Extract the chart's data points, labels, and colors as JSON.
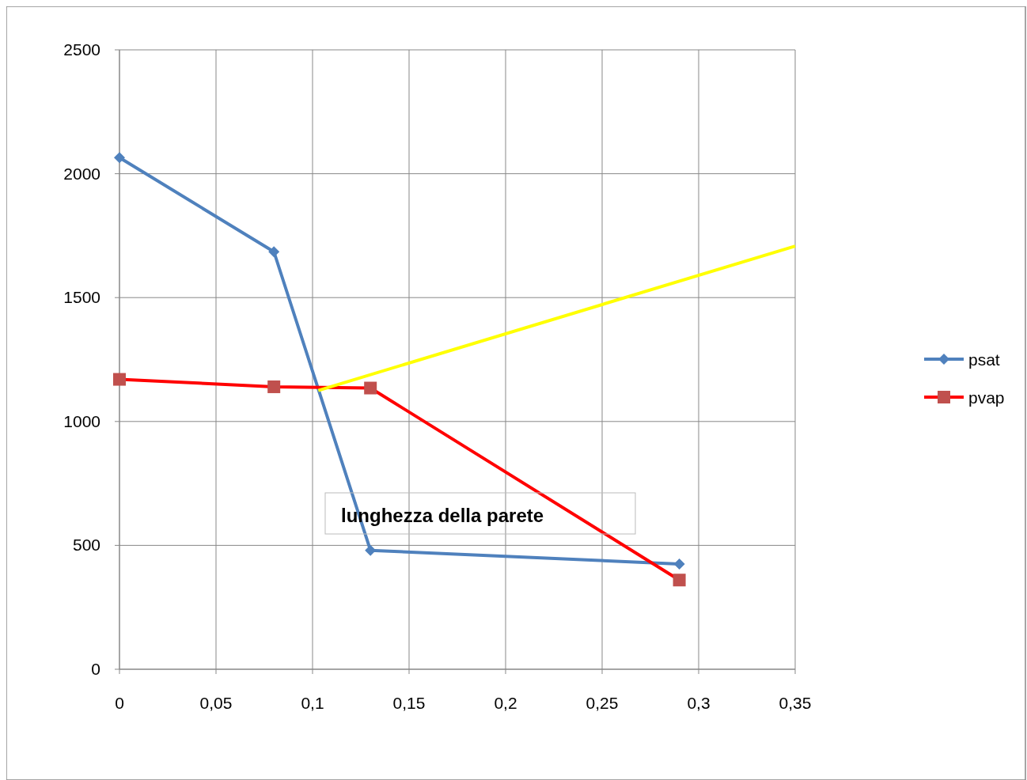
{
  "chart_data": {
    "type": "line",
    "x": [
      0,
      0.08,
      0.13,
      0.29
    ],
    "series": [
      {
        "name": "psat",
        "color": "#4f81bd",
        "marker": "diamond",
        "values": [
          2065,
          1685,
          480,
          425
        ]
      },
      {
        "name": "pvap",
        "color": "#ff0000",
        "marker": "square",
        "values": [
          1170,
          1140,
          1135,
          360
        ]
      },
      {
        "color": "#ffff00",
        "marker": "none",
        "x": [
          0.103,
          0.35
        ],
        "values": [
          1125,
          1708
        ]
      }
    ],
    "xlim": [
      0,
      0.35
    ],
    "xticks": [
      0,
      {
        "value": 0.05,
        "label": "0,05"
      },
      {
        "value": 0.1,
        "label": "0,1"
      },
      {
        "value": 0.15,
        "label": "0,15"
      },
      {
        "value": 0.2,
        "label": "0,2"
      },
      {
        "value": 0.25,
        "label": "0,25"
      },
      {
        "value": 0.3,
        "label": "0,3"
      },
      {
        "value": 0.35,
        "label": "0,35"
      }
    ],
    "ylim": [
      0,
      2500
    ],
    "yticks": [
      0,
      500,
      1000,
      1500,
      2000,
      2500
    ],
    "grid": true,
    "legend": "right",
    "annotations": [
      "lunghezza della parete"
    ]
  }
}
